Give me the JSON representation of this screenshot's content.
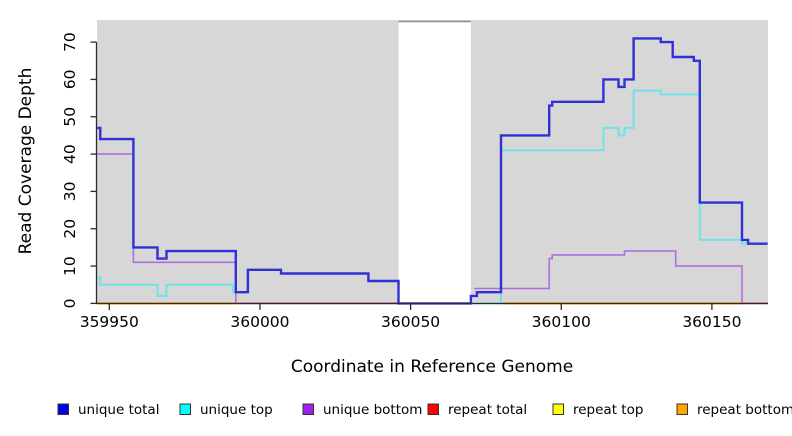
{
  "chart_data": {
    "type": "step-line",
    "title": "",
    "xlabel": "Coordinate in Reference Genome",
    "ylabel": "Read Coverage Depth",
    "x_ticks": [
      359950,
      360000,
      360050,
      360100,
      360150
    ],
    "y_ticks": [
      0,
      10,
      20,
      30,
      40,
      50,
      60,
      70
    ],
    "xlim": [
      359946,
      360168.5
    ],
    "ylim": [
      0,
      77
    ],
    "grid": false,
    "panel_bg": "#d7d7d7",
    "axis_color": "#2b2b2b",
    "masked_region": {
      "x_start": 360046,
      "x_end": 360070,
      "fill": "#ffffff",
      "cap_color": "#8f8f8f"
    },
    "series": [
      {
        "name": "repeat total",
        "color": "#d34b79",
        "width": 1.8,
        "segments": [
          [
            [
              359992,
              0
            ],
            [
              360046,
              0
            ]
          ],
          [
            [
              360160,
              0
            ],
            [
              360168.5,
              0
            ]
          ]
        ]
      },
      {
        "name": "repeat top",
        "color": "#ffe800",
        "width": 1.8,
        "segments": [
          [
            [
              359946,
              0
            ],
            [
              359992,
              0
            ]
          ],
          [
            [
              360080,
              0
            ],
            [
              360160,
              0
            ]
          ]
        ]
      },
      {
        "name": "repeat bottom",
        "color": "#ff9f1a",
        "width": 2.2,
        "segments": [
          [
            [
              359946,
              0
            ],
            [
              359992,
              0
            ]
          ],
          [
            [
              360080,
              0
            ],
            [
              360160,
              0
            ]
          ]
        ]
      },
      {
        "name": "unique bottom",
        "color": "#b06fe0",
        "width": 1.6,
        "segments": [
          [
            [
              359946,
              40
            ],
            [
              359958,
              11
            ],
            [
              359992,
              0
            ]
          ],
          [
            [
              360071,
              4
            ],
            [
              360096,
              12
            ],
            [
              360097,
              13
            ],
            [
              360121,
              14
            ],
            [
              360138,
              10
            ],
            [
              360160,
              0
            ]
          ]
        ]
      },
      {
        "name": "unique top",
        "color": "#6fe3ea",
        "width": 2.0,
        "segments": [
          [
            [
              359946,
              7
            ],
            [
              359947,
              5
            ],
            [
              359966,
              2
            ],
            [
              359969,
              5
            ],
            [
              359991,
              3
            ],
            [
              359996,
              9
            ],
            [
              360007,
              8
            ],
            [
              360036,
              6
            ],
            [
              360046,
              0
            ]
          ],
          [
            [
              360070,
              0
            ],
            [
              360080,
              41
            ],
            [
              360114,
              47
            ],
            [
              360119,
              45
            ],
            [
              360121,
              47
            ],
            [
              360124,
              57
            ],
            [
              360133,
              56
            ],
            [
              360146,
              17
            ],
            [
              360160,
              16
            ],
            [
              360168.5,
              16
            ]
          ]
        ]
      },
      {
        "name": "unique total",
        "color": "#3030d8",
        "width": 2.4,
        "segments": [
          [
            [
              359946,
              47
            ],
            [
              359947,
              44
            ],
            [
              359958,
              15
            ],
            [
              359966,
              12
            ],
            [
              359969,
              14
            ],
            [
              359992,
              3
            ],
            [
              359996,
              9
            ],
            [
              360007,
              8
            ],
            [
              360036,
              6
            ],
            [
              360046,
              0
            ],
            [
              360070,
              2
            ],
            [
              360072,
              3
            ],
            [
              360080,
              45
            ],
            [
              360096,
              53
            ],
            [
              360097,
              54
            ],
            [
              360114,
              60
            ],
            [
              360119,
              58
            ],
            [
              360121,
              60
            ],
            [
              360124,
              71
            ],
            [
              360133,
              70
            ],
            [
              360137,
              66
            ],
            [
              360144,
              65
            ],
            [
              360146,
              27
            ],
            [
              360160,
              17
            ],
            [
              360162,
              16
            ],
            [
              360168.5,
              16
            ]
          ]
        ]
      }
    ],
    "legend": [
      {
        "label": "unique total",
        "color": "#0000ee"
      },
      {
        "label": "unique top",
        "color": "#00ffff"
      },
      {
        "label": "unique bottom",
        "color": "#a020f0"
      },
      {
        "label": "repeat total",
        "color": "#ff0000"
      },
      {
        "label": "repeat top",
        "color": "#ffff00"
      },
      {
        "label": "repeat bottom",
        "color": "#ffa500"
      }
    ],
    "legend_position": "bottom"
  }
}
